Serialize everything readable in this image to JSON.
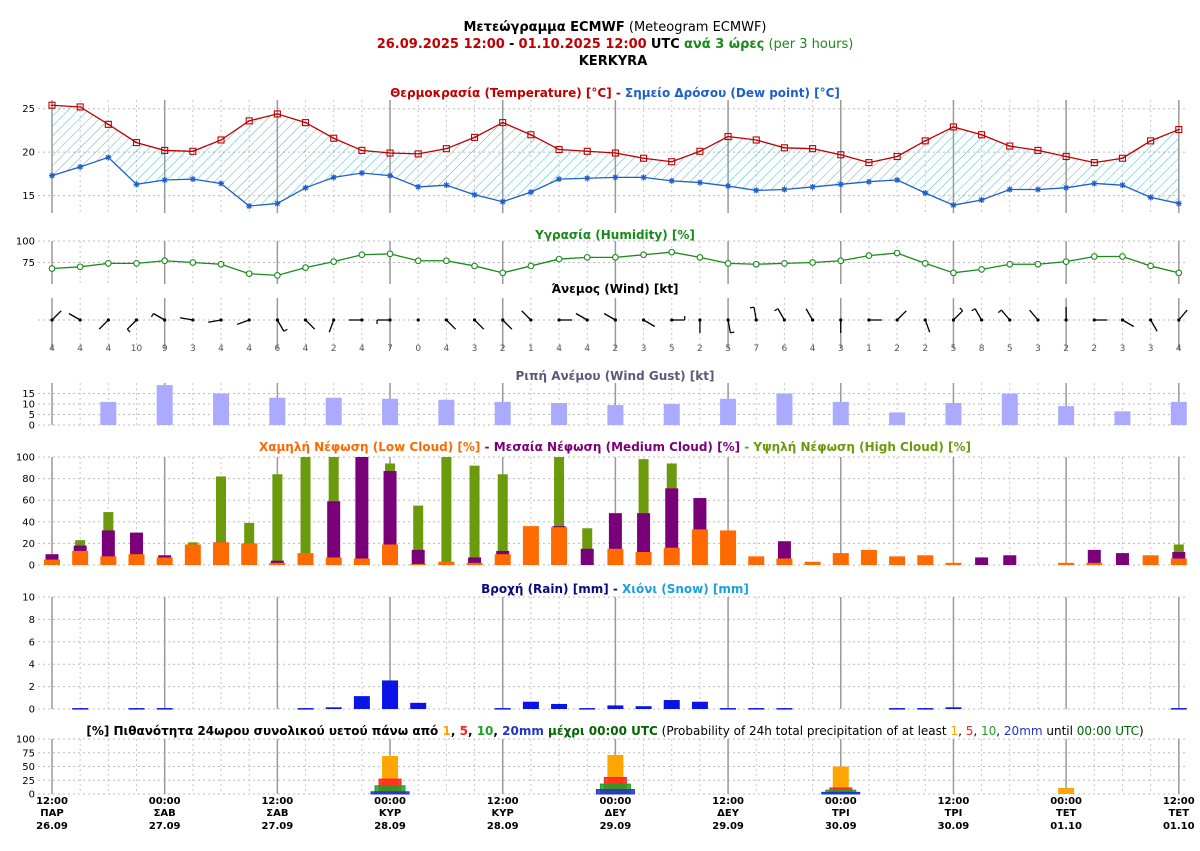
{
  "header": {
    "line1": {
      "greek": "Μετεώγραμμα ECMWF",
      "english": "(Meteogram ECMWF)"
    },
    "line2": {
      "start": "26.09.2025 12:00",
      "dash": "-",
      "end": "01.10.2025 12:00",
      "utc": "UTC",
      "step": "ανά 3 ώρες",
      "step_en": "(per 3 hours)"
    },
    "location": "KERKYRA"
  },
  "colors": {
    "temperature": "#c00000",
    "dewpoint": "#1f5fcc",
    "humidity": "#1a8a1a",
    "gust": "#aaaaff",
    "low_cloud": "#ff6a00",
    "medium_cloud": "#7a007a",
    "high_cloud": "#6b9a0c",
    "rain": "#0a14e6",
    "snow": "#19b3e6",
    "p1": "#ffa500",
    "p5": "#ff2020",
    "p10": "#22a022",
    "p20": "#1f33cc",
    "rain_title": "#0a0a80",
    "snow_title": "#19a0e0",
    "gust_title": "#5a5a7a"
  },
  "chart_data": [
    {
      "type": "line",
      "id": "temperature",
      "title_parts": [
        {
          "text": "Θερμοκρασία (Temperature) [°C]",
          "color": "#c00000"
        },
        {
          "text": " - ",
          "color": "#c00000"
        },
        {
          "text": "Σημείο Δρόσου (Dew point) [°C]",
          "color": "#1f5fcc"
        }
      ],
      "ylim": [
        13,
        26
      ],
      "yticks": [
        15,
        20,
        25
      ],
      "series": [
        {
          "name": "Θερμοκρασία (Temperature) [°C]",
          "values": [
            25.4,
            25.2,
            23.2,
            21.1,
            20.2,
            20.1,
            21.4,
            23.6,
            24.4,
            23.4,
            21.6,
            20.2,
            19.9,
            19.8,
            20.4,
            21.7,
            23.4,
            22.0,
            20.3,
            20.1,
            19.9,
            19.3,
            18.9,
            20.1,
            21.8,
            21.4,
            20.5,
            20.4,
            19.7,
            18.8,
            19.5,
            21.3,
            22.9,
            22.0,
            20.7,
            20.2,
            19.5,
            18.8,
            19.3,
            21.3,
            22.6
          ]
        },
        {
          "name": "Σημείο Δρόσου (Dew point) [°C]",
          "values": [
            17.3,
            18.3,
            19.4,
            16.3,
            16.8,
            16.9,
            16.4,
            13.8,
            14.1,
            15.9,
            17.1,
            17.6,
            17.3,
            16.0,
            16.2,
            15.1,
            14.3,
            15.4,
            16.9,
            17.0,
            17.1,
            17.1,
            16.7,
            16.5,
            16.1,
            15.6,
            15.7,
            16.0,
            16.3,
            16.6,
            16.8,
            15.3,
            13.9,
            14.5,
            15.7,
            15.7,
            15.9,
            16.4,
            16.2,
            14.8,
            14.1
          ]
        }
      ]
    },
    {
      "type": "line",
      "id": "humidity",
      "title_parts": [
        {
          "text": "Υγρασία (Humidity) [%]",
          "color": "#1a8a1a"
        }
      ],
      "ylim": [
        50,
        100
      ],
      "yticks": [
        75,
        100
      ],
      "series": [
        {
          "name": "Υγρασία (Humidity) [%]",
          "values": [
            68,
            70,
            74,
            74,
            77,
            75,
            73,
            62,
            60,
            69,
            76,
            84,
            85,
            77,
            77,
            71,
            63,
            71,
            79,
            81,
            81,
            84,
            87,
            81,
            74,
            73,
            74,
            75,
            77,
            83,
            86,
            74,
            63,
            67,
            73,
            73,
            76,
            82,
            82,
            71,
            63
          ]
        }
      ]
    },
    {
      "type": "wind",
      "id": "wind",
      "title_parts": [
        {
          "text": "Άνεμος (Wind) [kt]",
          "color": "#000000"
        }
      ],
      "speeds": [
        4,
        4,
        4,
        10,
        9,
        3,
        4,
        4,
        6,
        4,
        2,
        4,
        7,
        0,
        4,
        3,
        2,
        1,
        4,
        4,
        2,
        3,
        5,
        2,
        5,
        7,
        6,
        4,
        3,
        1,
        2,
        2,
        5,
        8,
        5,
        3,
        2,
        2,
        3,
        3,
        4
      ],
      "directions_deg": [
        45,
        300,
        225,
        225,
        300,
        280,
        260,
        250,
        150,
        135,
        200,
        270,
        270,
        0,
        135,
        135,
        135,
        315,
        90,
        300,
        300,
        120,
        90,
        180,
        170,
        350,
        330,
        330,
        180,
        90,
        45,
        160,
        45,
        330,
        320,
        320,
        0,
        90,
        120,
        150,
        40
      ]
    },
    {
      "type": "bar",
      "id": "gust",
      "title_parts": [
        {
          "text": "Ριπή Ανέμου (Wind Gust) [kt]",
          "color": "#5a5a7a"
        }
      ],
      "ylim": [
        0,
        20
      ],
      "yticks": [
        0,
        5,
        10,
        15
      ],
      "indices": [
        2,
        4,
        6,
        8,
        10,
        12,
        14,
        16,
        18,
        20,
        22,
        24,
        26,
        28,
        30,
        32,
        34,
        36,
        38,
        40
      ],
      "series": [
        {
          "name": "Ριπή Ανέμου (Wind Gust) [kt]",
          "values": [
            11,
            19,
            15,
            13,
            13,
            12.5,
            12,
            11,
            10.5,
            9.5,
            10,
            12.5,
            15,
            11,
            6,
            10.5,
            15,
            9,
            6.5,
            11
          ]
        }
      ]
    },
    {
      "type": "bar",
      "id": "cloud",
      "title_parts": [
        {
          "text": "Χαμηλή Νέφωση (Low Cloud) [%]",
          "color": "#ff6a00"
        },
        {
          "text": " - ",
          "color": "#7a007a"
        },
        {
          "text": "Μεσαία Νέφωση (Medium Cloud) [%]",
          "color": "#7a007a"
        },
        {
          "text": " - ",
          "color": "#6b9a0c"
        },
        {
          "text": "Υψηλή Νέφωση (High Cloud) [%]",
          "color": "#6b9a0c"
        }
      ],
      "ylim": [
        0,
        100
      ],
      "yticks": [
        0,
        20,
        40,
        60,
        80,
        100
      ],
      "series": [
        {
          "name": "Υψηλή Νέφωση (High Cloud) [%]",
          "values": [
            6,
            23,
            49,
            0,
            0,
            21,
            82,
            39,
            84,
            100,
            100,
            0,
            94,
            55,
            100,
            92,
            84,
            0,
            100,
            34,
            0,
            98,
            94,
            0,
            0,
            0,
            0,
            0,
            0,
            0,
            0,
            0,
            0,
            0,
            0,
            0,
            0,
            0,
            0,
            0,
            19
          ]
        },
        {
          "name": "Μεσαία Νέφωση (Medium Cloud) [%]",
          "values": [
            10,
            18,
            32,
            30,
            9,
            0,
            21,
            0,
            4,
            0,
            59,
            100,
            87,
            14,
            0,
            7,
            13,
            0,
            36,
            15,
            48,
            48,
            71,
            62,
            0,
            0,
            22,
            0,
            0,
            0,
            0,
            0,
            0,
            7,
            9,
            0,
            0,
            14,
            11,
            0,
            12
          ]
        },
        {
          "name": "Χαμηλή Νέφωση (Low Cloud) [%]",
          "values": [
            5,
            13,
            8,
            10,
            7,
            19,
            21,
            20,
            2,
            11,
            7,
            6,
            19,
            1,
            3,
            2,
            10,
            36,
            35,
            0,
            15,
            12,
            16,
            33,
            32,
            8,
            6,
            3,
            11,
            14,
            8,
            9,
            2,
            0,
            0,
            0,
            2,
            2,
            0,
            9,
            6
          ]
        }
      ]
    },
    {
      "type": "bar",
      "id": "precip",
      "title_parts": [
        {
          "text": "Βροχή (Rain) [mm]",
          "color": "#0a0a80"
        },
        {
          "text": " - ",
          "color": "#0a0a80"
        },
        {
          "text": "Χιόνι (Snow) [mm]",
          "color": "#19a0e0"
        }
      ],
      "ylim": [
        0,
        10
      ],
      "yticks": [
        0,
        2,
        4,
        6,
        8,
        10
      ],
      "series": [
        {
          "name": "Βροχή (Rain) [mm]",
          "values": [
            0,
            0.08,
            0,
            0.08,
            0.08,
            0,
            0,
            0,
            0,
            0.08,
            0.15,
            1.15,
            2.55,
            0.55,
            0,
            0,
            0.08,
            0.65,
            0.45,
            0.08,
            0.32,
            0.25,
            0.8,
            0.65,
            0.08,
            0.08,
            0.08,
            0,
            0,
            0,
            0.08,
            0.08,
            0.15,
            0,
            0,
            0,
            0,
            0,
            0,
            0,
            0.08
          ]
        },
        {
          "name": "Χιόνι (Snow) [mm]",
          "values": [
            0,
            0,
            0,
            0,
            0,
            0,
            0,
            0,
            0,
            0,
            0,
            0,
            0,
            0,
            0,
            0,
            0,
            0,
            0,
            0,
            0,
            0,
            0,
            0,
            0,
            0,
            0,
            0,
            0,
            0,
            0,
            0,
            0,
            0,
            0,
            0,
            0,
            0,
            0,
            0,
            0
          ]
        }
      ]
    },
    {
      "type": "bar",
      "id": "probability",
      "title_parts": [
        {
          "text": "[%] Πιθανότητα 24ωρου συνολικού υετού πάνω από ",
          "color": "#000000",
          "bold": true
        },
        {
          "text": "1",
          "color": "#ffa500",
          "bold": true
        },
        {
          "text": ", ",
          "color": "#000000",
          "bold": true
        },
        {
          "text": "5",
          "color": "#ff2020",
          "bold": true
        },
        {
          "text": ", ",
          "color": "#000000",
          "bold": true
        },
        {
          "text": "10",
          "color": "#22a022",
          "bold": true
        },
        {
          "text": ", ",
          "color": "#000000",
          "bold": true
        },
        {
          "text": "20mm",
          "color": "#1f33cc",
          "bold": true
        },
        {
          "text": " μέχρι 00:00 UTC",
          "color": "#006400",
          "bold": true
        },
        {
          "text": " (Probability of 24h total precipitation of at least ",
          "color": "#000000",
          "bold": false
        },
        {
          "text": "1",
          "color": "#ffa500",
          "bold": false
        },
        {
          "text": ", ",
          "color": "#000000",
          "bold": false
        },
        {
          "text": "5",
          "color": "#ff2020",
          "bold": false
        },
        {
          "text": ", ",
          "color": "#000000",
          "bold": false
        },
        {
          "text": "10",
          "color": "#22a022",
          "bold": false
        },
        {
          "text": ", ",
          "color": "#000000",
          "bold": false
        },
        {
          "text": "20mm",
          "color": "#1f33cc",
          "bold": false
        },
        {
          "text": " until ",
          "color": "#000000",
          "bold": false
        },
        {
          "text": "00:00 UTC",
          "color": "#006400",
          "bold": false
        },
        {
          "text": ")",
          "color": "#000000",
          "bold": false
        }
      ],
      "ylim": [
        0,
        100
      ],
      "yticks": [
        0,
        25,
        50,
        75,
        100
      ],
      "indices": [
        12,
        20,
        28,
        36
      ],
      "series": [
        {
          "name": "1",
          "values": [
            69,
            71,
            50,
            11
          ]
        },
        {
          "name": "5",
          "values": [
            27,
            30,
            11,
            0
          ]
        },
        {
          "name": "10",
          "values": [
            15,
            18,
            7,
            0
          ]
        },
        {
          "name": "20mm",
          "values": [
            4,
            8,
            3,
            0
          ]
        }
      ]
    }
  ],
  "x_axis": {
    "labels": [
      {
        "index": 0,
        "time": "12:00",
        "day": "ΠΑΡ",
        "date": "26.09"
      },
      {
        "index": 4,
        "time": "00:00",
        "day": "ΣΑΒ",
        "date": "27.09"
      },
      {
        "index": 8,
        "time": "12:00",
        "day": "ΣΑΒ",
        "date": "27.09"
      },
      {
        "index": 12,
        "time": "00:00",
        "day": "ΚΥΡ",
        "date": "28.09"
      },
      {
        "index": 16,
        "time": "12:00",
        "day": "ΚΥΡ",
        "date": "28.09"
      },
      {
        "index": 20,
        "time": "00:00",
        "day": "ΔΕΥ",
        "date": "29.09"
      },
      {
        "index": 24,
        "time": "12:00",
        "day": "ΔΕΥ",
        "date": "29.09"
      },
      {
        "index": 28,
        "time": "00:00",
        "day": "ΤΡΙ",
        "date": "30.09"
      },
      {
        "index": 32,
        "time": "12:00",
        "day": "ΤΡΙ",
        "date": "30.09"
      },
      {
        "index": 36,
        "time": "00:00",
        "day": "ΤΕΤ",
        "date": "01.10"
      },
      {
        "index": 40,
        "time": "12:00",
        "day": "ΤΕΤ",
        "date": "01.10"
      }
    ]
  }
}
